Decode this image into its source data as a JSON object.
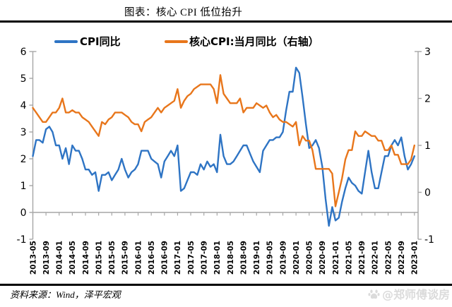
{
  "header": {
    "title": "图表：核心 CPI 低位抬升"
  },
  "legend": {
    "items": [
      {
        "label": "CPI同比",
        "color": "#2E74C4"
      },
      {
        "label": "核心CPI:当月同比（右轴）",
        "color": "#E8761B"
      }
    ]
  },
  "footer": {
    "source": "资料来源：Wind，泽平宏观",
    "watermark": "@郑师傅谈房"
  },
  "colors": {
    "axis_line": "#A6A6A6",
    "tick_label": "#000000",
    "divider": "#000000",
    "watermark": "#DBDBDB",
    "background": "#FFFFFF"
  },
  "chart_data": {
    "type": "line",
    "title": "图表：核心 CPI 低位抬升",
    "x_frequency": "monthly",
    "x_start": "2013-05",
    "x_end": "2023-01",
    "x_tick_labels": [
      "2013-05",
      "2013-09",
      "2014-01",
      "2014-05",
      "2014-09",
      "2015-01",
      "2015-05",
      "2015-09",
      "2016-01",
      "2016-05",
      "2016-09",
      "2017-01",
      "2017-05",
      "2017-09",
      "2018-01",
      "2018-05",
      "2018-09",
      "2019-01",
      "2019-05",
      "2019-09",
      "2020-01",
      "2020-05",
      "2020-09",
      "2021-01",
      "2021-05",
      "2021-09",
      "2022-01",
      "2022-05",
      "2022-09",
      "2023-01"
    ],
    "left_axis": {
      "ticks": [
        6,
        5,
        4,
        3,
        2,
        1,
        0,
        -1
      ],
      "range": [
        -1,
        6
      ]
    },
    "right_axis": {
      "ticks": [
        3,
        2,
        1,
        0,
        -1
      ],
      "range": [
        -1,
        3
      ]
    },
    "grid": false,
    "legend_position": "top",
    "series": [
      {
        "name": "CPI同比",
        "axis": "left",
        "color": "#2E74C4",
        "values": [
          2.1,
          2.7,
          2.7,
          2.6,
          3.1,
          3.2,
          3.0,
          2.5,
          2.5,
          2.0,
          2.4,
          1.8,
          2.5,
          2.3,
          2.3,
          2.0,
          1.6,
          1.6,
          1.4,
          1.5,
          0.8,
          1.4,
          1.4,
          1.5,
          1.2,
          1.4,
          1.6,
          2.0,
          1.6,
          1.3,
          1.5,
          1.6,
          1.8,
          2.3,
          2.3,
          2.3,
          2.0,
          1.9,
          1.8,
          1.3,
          1.9,
          2.1,
          2.3,
          2.1,
          2.5,
          0.8,
          0.9,
          1.2,
          1.5,
          1.5,
          1.4,
          1.8,
          1.6,
          1.9,
          1.7,
          1.8,
          1.5,
          2.9,
          2.1,
          1.8,
          1.8,
          1.9,
          2.1,
          2.3,
          2.5,
          2.5,
          2.2,
          1.9,
          1.7,
          1.5,
          2.3,
          2.5,
          2.7,
          2.7,
          2.8,
          2.8,
          3.0,
          3.8,
          4.5,
          4.5,
          5.4,
          5.2,
          4.3,
          3.3,
          2.4,
          2.5,
          2.7,
          2.4,
          1.7,
          0.5,
          -0.5,
          0.2,
          -0.3,
          -0.2,
          0.4,
          0.9,
          1.3,
          1.1,
          1.0,
          0.8,
          0.7,
          1.5,
          2.3,
          1.5,
          0.9,
          0.9,
          1.5,
          2.1,
          2.1,
          2.5,
          2.7,
          2.5,
          2.8,
          2.1,
          1.6,
          1.8,
          2.1
        ]
      },
      {
        "name": "核心CPI:当月同比（右轴）",
        "axis": "right",
        "color": "#E8761B",
        "values": [
          1.8,
          1.7,
          1.6,
          1.5,
          1.5,
          1.6,
          1.7,
          1.7,
          1.8,
          2.0,
          1.7,
          1.7,
          1.75,
          1.7,
          1.7,
          1.6,
          1.55,
          1.5,
          1.4,
          1.3,
          1.2,
          1.5,
          1.45,
          1.55,
          1.6,
          1.7,
          1.7,
          1.7,
          1.65,
          1.6,
          1.5,
          1.45,
          1.45,
          1.3,
          1.5,
          1.55,
          1.6,
          1.7,
          1.8,
          1.7,
          1.8,
          1.85,
          1.9,
          1.95,
          2.2,
          1.8,
          1.95,
          2.05,
          2.1,
          2.2,
          2.25,
          2.3,
          2.3,
          2.3,
          2.3,
          2.2,
          1.9,
          2.5,
          2.1,
          2.0,
          1.9,
          1.9,
          1.9,
          2.0,
          1.7,
          1.8,
          1.8,
          1.8,
          1.9,
          1.85,
          1.8,
          1.85,
          1.7,
          1.6,
          1.65,
          1.55,
          1.5,
          1.5,
          1.45,
          1.4,
          1.5,
          1.0,
          1.2,
          1.1,
          1.1,
          0.9,
          0.5,
          0.5,
          0.5,
          0.5,
          0.5,
          0.4,
          -0.3,
          0.0,
          0.3,
          0.7,
          0.9,
          0.9,
          1.3,
          1.2,
          1.2,
          1.3,
          1.25,
          1.2,
          1.2,
          1.1,
          1.1,
          0.9,
          0.9,
          1.0,
          0.8,
          0.8,
          0.6,
          0.6,
          0.6,
          0.7,
          1.0
        ]
      }
    ]
  }
}
